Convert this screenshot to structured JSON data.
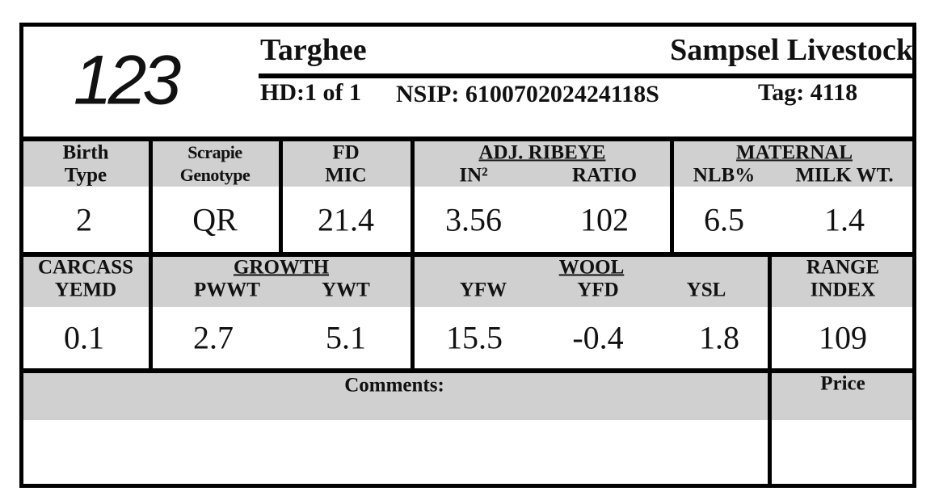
{
  "header": {
    "number": "123",
    "breed": "Targhee",
    "breeder": "Sampsel Livestock",
    "hd": "HD:1 of 1",
    "nsip": "NSIP: 610070202424118S",
    "tag": "Tag: 4118"
  },
  "row1": {
    "birth_type": {
      "label": [
        "Birth",
        "Type"
      ],
      "value": "2"
    },
    "scrapie": {
      "label": [
        "Scrapie",
        "Genotype"
      ],
      "value": "QR"
    },
    "fd": {
      "label": [
        "FD",
        "MIC"
      ],
      "value": "21.4"
    },
    "ribeye": {
      "title": "ADJ. RIBEYE",
      "columns": [
        {
          "label": "IN²",
          "value": "3.56"
        },
        {
          "label": "RATIO",
          "value": "102"
        }
      ]
    },
    "maternal": {
      "title": "MATERNAL",
      "columns": [
        {
          "label": "NLB%",
          "value": "6.5"
        },
        {
          "label": "MILK WT.",
          "value": "1.4"
        }
      ]
    }
  },
  "row2": {
    "carcass": {
      "label": [
        "CARCASS",
        "YEMD"
      ],
      "value": "0.1"
    },
    "growth": {
      "title": "GROWTH",
      "columns": [
        {
          "label": "PWWT",
          "value": "2.7"
        },
        {
          "label": "YWT",
          "value": "5.1"
        }
      ]
    },
    "wool": {
      "title": "WOOL",
      "columns": [
        {
          "label": "YFW",
          "value": "15.5"
        },
        {
          "label": "YFD",
          "value": "-0.4"
        },
        {
          "label": "YSL",
          "value": "1.8"
        }
      ]
    },
    "range": {
      "label": [
        "RANGE",
        "INDEX"
      ],
      "value": "109"
    }
  },
  "row3": {
    "comments": "Comments:",
    "price": "Price"
  }
}
